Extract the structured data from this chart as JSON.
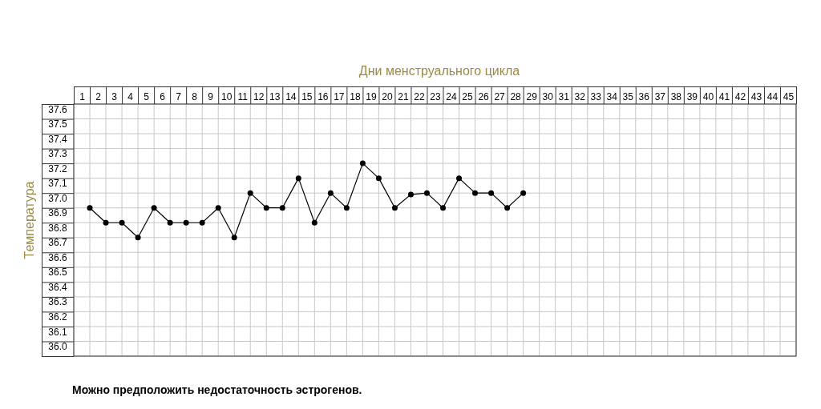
{
  "chart_data": {
    "type": "line",
    "xlabel": "Дни менструального цикла",
    "ylabel": "Температура",
    "annotations": [
      "Можно предположить недостаточность эстрогенов."
    ],
    "x": [
      1.5,
      2.5,
      3.5,
      4.5,
      5.5,
      6.5,
      7.5,
      8.5,
      9.5,
      10.5,
      11.5,
      12.5,
      13.5,
      14.5,
      15.5,
      16.5,
      17.5,
      18.5,
      19.5,
      20.5,
      21.5,
      22.5,
      23.5,
      24.5,
      25.5,
      26.5,
      27.5,
      28.5
    ],
    "series": [
      {
        "color": "#000000",
        "values": [
          36.9,
          36.8,
          36.8,
          36.7,
          36.9,
          36.8,
          36.8,
          36.8,
          36.9,
          36.7,
          37.0,
          36.9,
          36.9,
          37.1,
          36.8,
          37.0,
          36.9,
          37.2,
          37.1,
          36.9,
          36.99,
          37.0,
          36.9,
          37.1,
          37.0,
          37.0,
          36.9,
          37.0
        ]
      }
    ],
    "xlim": [
      0.5,
      45.5
    ],
    "ylim": [
      35.9,
      37.6
    ],
    "xticks": [
      1,
      2,
      3,
      4,
      5,
      6,
      7,
      8,
      9,
      10,
      11,
      12,
      13,
      14,
      15,
      16,
      17,
      18,
      19,
      20,
      21,
      22,
      23,
      24,
      25,
      26,
      27,
      28,
      29,
      30,
      31,
      32,
      33,
      34,
      35,
      36,
      37,
      38,
      39,
      40,
      41,
      42,
      43,
      44,
      45
    ],
    "yticks": [
      {
        "value": 36.0,
        "label": "36.0"
      },
      {
        "value": 36.1,
        "label": "36.1"
      },
      {
        "value": 36.2,
        "label": "36.2"
      },
      {
        "value": 36.3,
        "label": "36.3"
      },
      {
        "value": 36.4,
        "label": "36.4"
      },
      {
        "value": 36.5,
        "label": "36.5"
      },
      {
        "value": 36.6,
        "label": "36.6"
      },
      {
        "value": 36.7,
        "label": "36.7"
      },
      {
        "value": 36.8,
        "label": "36.8"
      },
      {
        "value": 36.9,
        "label": "36.9"
      },
      {
        "value": 37.0,
        "label": "37.0"
      },
      {
        "value": 37.1,
        "label": "37.1"
      },
      {
        "value": 37.2,
        "label": "37.2"
      },
      {
        "value": 37.3,
        "label": "37.3"
      },
      {
        "value": 37.4,
        "label": "37.4"
      },
      {
        "value": 37.5,
        "label": "37.5"
      },
      {
        "value": 37.6,
        "label": "37.6"
      }
    ],
    "grid": true,
    "marker": "circle",
    "line_style": "solid"
  }
}
